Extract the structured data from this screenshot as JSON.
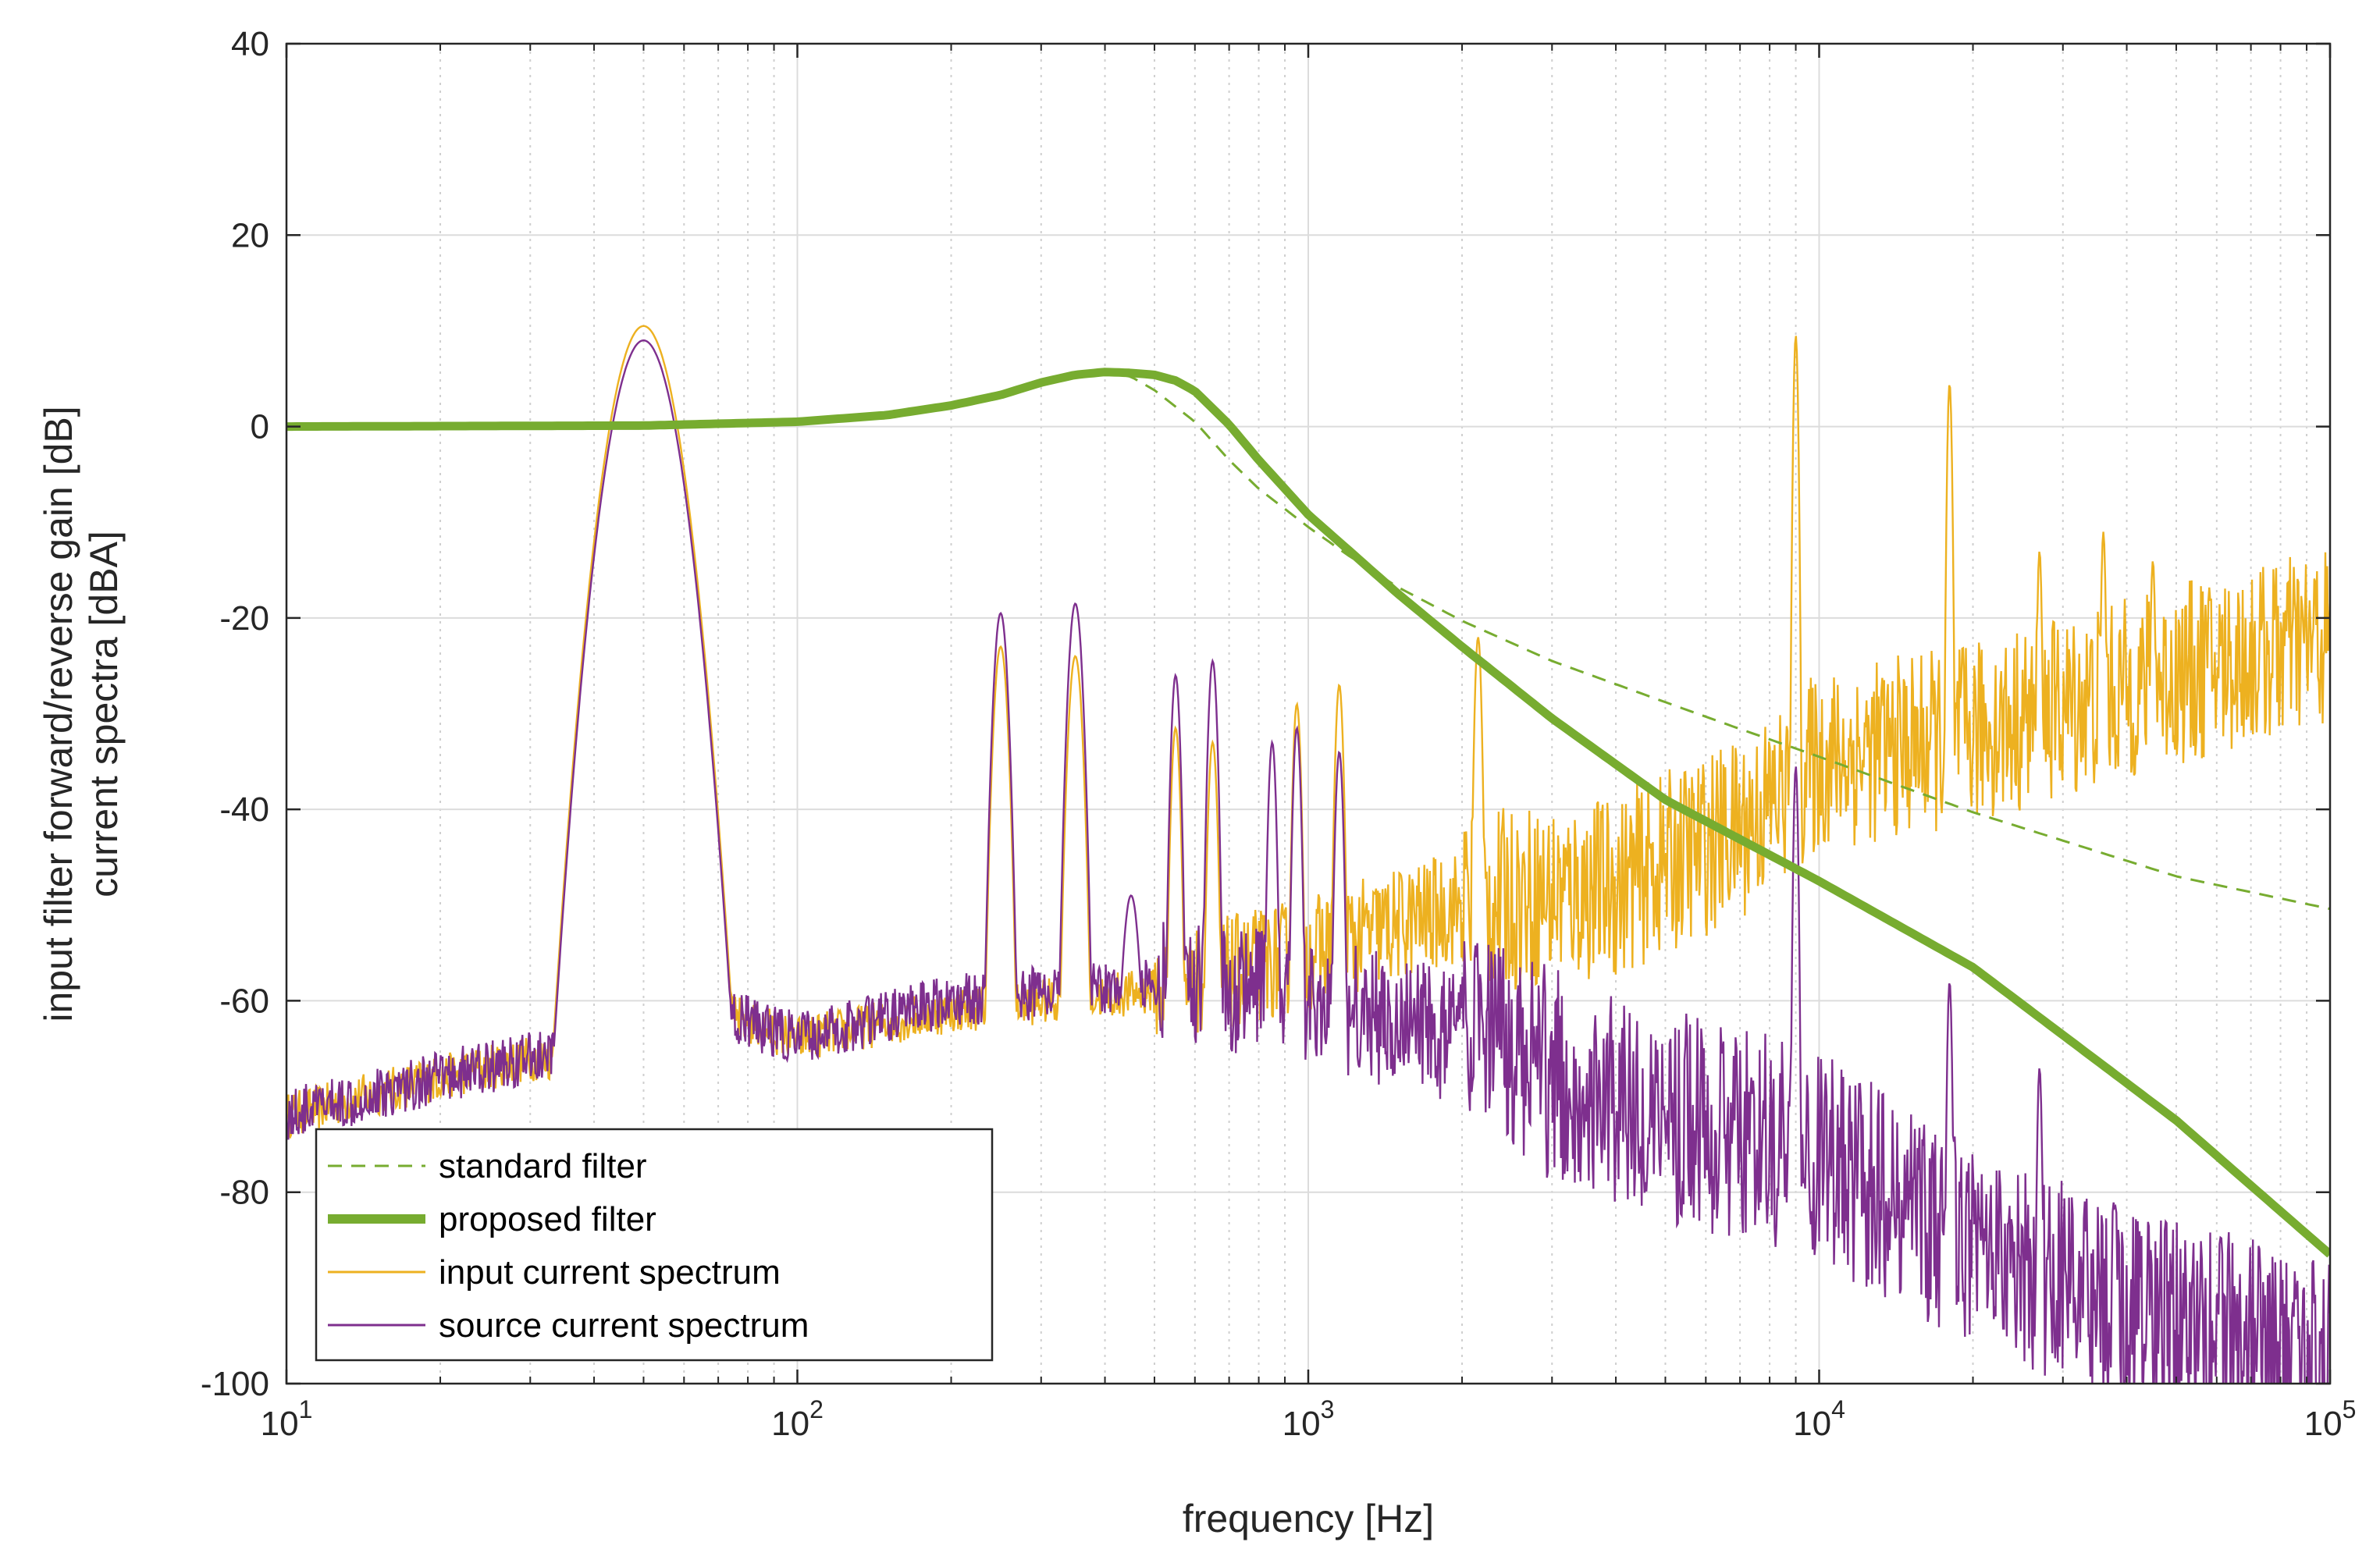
{
  "chart_data": {
    "type": "line",
    "title": "",
    "xlabel": "frequency [Hz]",
    "ylabel_lines": [
      "input filter forward/reverse gain [dB]",
      "current spectra [dBA]"
    ],
    "xscale": "log",
    "xlim": [
      10,
      100000
    ],
    "ylim": [
      -100,
      40
    ],
    "yticks": [
      -100,
      -80,
      -60,
      -40,
      -20,
      0,
      20,
      40
    ],
    "ytick_labels": [
      "-100",
      "-80",
      "-60",
      "-40",
      "-20",
      "0",
      "20",
      "40"
    ],
    "xtick_labels": [
      {
        "base": "10",
        "exp": "1"
      },
      {
        "base": "10",
        "exp": "2"
      },
      {
        "base": "10",
        "exp": "3"
      },
      {
        "base": "10",
        "exp": "4"
      },
      {
        "base": "10",
        "exp": "5"
      }
    ],
    "grid": true,
    "legend_position": "bottom-left",
    "colors": {
      "standard": "#77AC30",
      "proposed": "#77AC30",
      "input": "#EDB120",
      "source": "#7E2F8E",
      "axis": "#262626",
      "grid": "#dcdcdc"
    },
    "series": [
      {
        "name": "standard filter",
        "style": "dashed",
        "x": [
          10,
          50,
          100,
          150,
          200,
          250,
          300,
          350,
          400,
          450,
          500,
          600,
          700,
          800,
          1000,
          1200,
          1500,
          2000,
          3000,
          5000,
          7000,
          10000,
          20000,
          50000,
          100000
        ],
        "y": [
          0,
          0.1,
          0.5,
          1.2,
          2.2,
          3.2,
          4.3,
          5.3,
          5.7,
          5.2,
          3.8,
          0.5,
          -3.5,
          -6.5,
          -10.5,
          -13.5,
          -16.8,
          -20.3,
          -24.5,
          -28.8,
          -31.6,
          -34.5,
          -40.3,
          -47.0,
          -50.4
        ]
      },
      {
        "name": "proposed filter",
        "style": "thick",
        "x": [
          10,
          50,
          100,
          150,
          200,
          250,
          300,
          350,
          400,
          450,
          500,
          550,
          600,
          700,
          800,
          1000,
          1500,
          2000,
          3000,
          5000,
          10000,
          20000,
          50000,
          100000
        ],
        "y": [
          0,
          0.1,
          0.5,
          1.2,
          2.2,
          3.3,
          4.6,
          5.4,
          5.7,
          5.6,
          5.4,
          4.8,
          3.7,
          0.2,
          -3.5,
          -9.2,
          -17.5,
          -23,
          -30.5,
          -39,
          -47.5,
          -56.5,
          -72.5,
          -86.5
        ]
      },
      {
        "name": "input current spectrum",
        "style": "thin",
        "baseline": [
          [
            10,
            -72
          ],
          [
            20,
            -68
          ],
          [
            30,
            -66
          ],
          [
            40,
            -66
          ],
          [
            60,
            -60
          ],
          [
            100,
            -64
          ],
          [
            200,
            -61
          ],
          [
            500,
            -59
          ],
          [
            1000,
            -55
          ],
          [
            2000,
            -50
          ],
          [
            4000,
            -48
          ],
          [
            7000,
            -42
          ],
          [
            10000,
            -35
          ],
          [
            20000,
            -32
          ],
          [
            50000,
            -26
          ],
          [
            100000,
            -22
          ]
        ],
        "peaks": [
          {
            "f": 50,
            "db": 10.5,
            "w": 0.05
          },
          {
            "f": 250,
            "db": -23,
            "w": 0.012
          },
          {
            "f": 350,
            "db": -24,
            "w": 0.012
          },
          {
            "f": 550,
            "db": -31.5,
            "w": 0.008
          },
          {
            "f": 650,
            "db": -33,
            "w": 0.008
          },
          {
            "f": 950,
            "db": -29,
            "w": 0.007
          },
          {
            "f": 1150,
            "db": -27,
            "w": 0.007
          },
          {
            "f": 2150,
            "db": -22,
            "w": 0.006
          },
          {
            "f": 9000,
            "db": 9.5,
            "w": 0.004
          },
          {
            "f": 18000,
            "db": 4.5,
            "w": 0.004
          },
          {
            "f": 27000,
            "db": -13,
            "w": 0.004
          },
          {
            "f": 36000,
            "db": -11,
            "w": 0.004
          },
          {
            "f": 45000,
            "db": -14,
            "w": 0.004
          }
        ]
      },
      {
        "name": "source current spectrum",
        "style": "thin",
        "baseline": [
          [
            10,
            -72
          ],
          [
            20,
            -68
          ],
          [
            30,
            -66
          ],
          [
            40,
            -66
          ],
          [
            60,
            -60
          ],
          [
            100,
            -64
          ],
          [
            200,
            -60
          ],
          [
            500,
            -58
          ],
          [
            1000,
            -60
          ],
          [
            2000,
            -64
          ],
          [
            5000,
            -72
          ],
          [
            10000,
            -76
          ],
          [
            20000,
            -86
          ],
          [
            50000,
            -94
          ],
          [
            100000,
            -98
          ]
        ],
        "peaks": [
          {
            "f": 50,
            "db": 9,
            "w": 0.05
          },
          {
            "f": 250,
            "db": -19.5,
            "w": 0.012
          },
          {
            "f": 350,
            "db": -18.5,
            "w": 0.012
          },
          {
            "f": 450,
            "db": -49,
            "w": 0.015
          },
          {
            "f": 550,
            "db": -26,
            "w": 0.008
          },
          {
            "f": 650,
            "db": -24.5,
            "w": 0.008
          },
          {
            "f": 850,
            "db": -33,
            "w": 0.007
          },
          {
            "f": 950,
            "db": -31.5,
            "w": 0.007
          },
          {
            "f": 1150,
            "db": -34,
            "w": 0.007
          },
          {
            "f": 9000,
            "db": -35.5,
            "w": 0.004
          },
          {
            "f": 18000,
            "db": -58,
            "w": 0.004
          },
          {
            "f": 27000,
            "db": -67,
            "w": 0.004
          }
        ]
      }
    ],
    "legend": [
      "standard filter",
      "proposed filter",
      "input current spectrum",
      "source current spectrum"
    ]
  }
}
